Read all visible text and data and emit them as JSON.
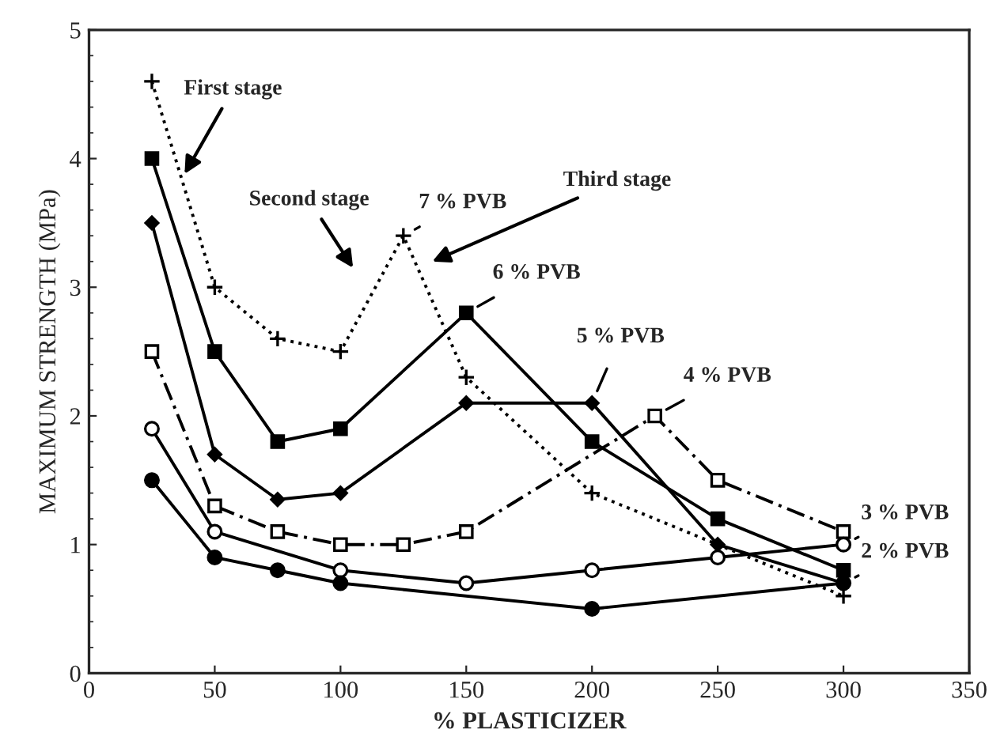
{
  "chart_data": {
    "type": "line",
    "xlabel": "% PLASTICIZER",
    "ylabel": "MAXIMUM STRENGTH (MPa)",
    "xlim": [
      0,
      350
    ],
    "xticks": [
      0,
      50,
      100,
      150,
      200,
      250,
      300,
      350
    ],
    "ylim": [
      0,
      5
    ],
    "yticks": [
      0,
      1,
      2,
      3,
      4,
      5
    ],
    "grid": false,
    "legend": false,
    "series": [
      {
        "name": "7 % PVB",
        "color": "#000000",
        "marker": "cross",
        "line_style": "dotted",
        "x": [
          25,
          50,
          75,
          100,
          125,
          150,
          200,
          300
        ],
        "values": [
          4.6,
          3.0,
          2.6,
          2.5,
          3.4,
          2.3,
          1.4,
          0.6
        ]
      },
      {
        "name": "6 % PVB",
        "color": "#000000",
        "marker": "square",
        "line_style": "solid",
        "x": [
          25,
          50,
          75,
          100,
          150,
          200,
          250,
          300
        ],
        "values": [
          4.0,
          2.5,
          1.8,
          1.9,
          2.8,
          1.8,
          1.2,
          0.8
        ]
      },
      {
        "name": "5 % PVB",
        "color": "#000000",
        "marker": "diamond",
        "line_style": "solid",
        "x": [
          25,
          50,
          75,
          100,
          150,
          200,
          250,
          300
        ],
        "values": [
          3.5,
          1.7,
          1.35,
          1.4,
          2.1,
          2.1,
          1.0,
          0.7
        ]
      },
      {
        "name": "4 % PVB",
        "color": "#000000",
        "marker": "square",
        "line_style": "dashed",
        "x": [
          25,
          50,
          75,
          100,
          125,
          150,
          225,
          250,
          300
        ],
        "values": [
          2.5,
          1.3,
          1.1,
          1.0,
          1.0,
          1.1,
          2.0,
          1.5,
          1.1
        ]
      },
      {
        "name": "3 % PVB",
        "color": "#000000",
        "marker": "circle",
        "line_style": "solid",
        "x": [
          25,
          50,
          100,
          150,
          200,
          250,
          300
        ],
        "values": [
          1.9,
          1.1,
          0.8,
          0.7,
          0.8,
          0.9,
          1.0
        ]
      },
      {
        "name": "2 % PVB",
        "color": "#000000",
        "marker": "circle",
        "line_style": "solid",
        "x": [
          25,
          50,
          75,
          100,
          200,
          300
        ],
        "values": [
          1.5,
          0.9,
          0.8,
          0.7,
          0.5,
          0.7
        ]
      }
    ],
    "annotations": [
      {
        "text": "First stage",
        "x": 38,
        "y": 3.88
      },
      "Second stage",
      "Third stage"
    ]
  }
}
